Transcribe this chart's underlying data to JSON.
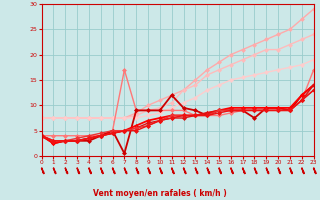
{
  "xlabel": "Vent moyen/en rafales ( km/h )",
  "bg_color": "#cce8e8",
  "grid_color": "#99cccc",
  "axis_color": "#cc0000",
  "label_color": "#cc0000",
  "xlim": [
    0,
    23
  ],
  "ylim": [
    0,
    30
  ],
  "xticks": [
    0,
    1,
    2,
    3,
    4,
    5,
    6,
    7,
    8,
    9,
    10,
    11,
    12,
    13,
    14,
    15,
    16,
    17,
    18,
    19,
    20,
    21,
    22,
    23
  ],
  "yticks": [
    0,
    5,
    10,
    15,
    20,
    25,
    30
  ],
  "lines": [
    {
      "x": [
        0,
        1,
        2,
        3,
        4,
        5,
        6,
        7,
        8,
        9,
        10,
        11,
        12,
        13,
        14,
        15,
        16,
        17,
        18,
        19,
        20,
        21,
        22,
        23
      ],
      "y": [
        7.5,
        7.5,
        7.5,
        7.5,
        7.5,
        7.5,
        7.5,
        7.5,
        8.5,
        10,
        11,
        12,
        13,
        15,
        17,
        18.5,
        20,
        21,
        22,
        23,
        24,
        25,
        27,
        29
      ],
      "color": "#ffaaaa",
      "lw": 1.0,
      "ms": 2.5
    },
    {
      "x": [
        0,
        1,
        2,
        3,
        4,
        5,
        6,
        7,
        8,
        9,
        10,
        11,
        12,
        13,
        14,
        15,
        16,
        17,
        18,
        19,
        20,
        21,
        22,
        23
      ],
      "y": [
        7.5,
        7.5,
        7.5,
        7.5,
        7.5,
        7.5,
        7.5,
        7.5,
        8,
        9,
        9.5,
        10.5,
        13,
        14,
        16,
        17,
        18,
        19,
        20,
        21,
        21,
        22,
        23,
        24
      ],
      "color": "#ffbbbb",
      "lw": 1.0,
      "ms": 2.5
    },
    {
      "x": [
        0,
        1,
        2,
        3,
        4,
        5,
        6,
        7,
        8,
        9,
        10,
        11,
        12,
        13,
        14,
        15,
        16,
        17,
        18,
        19,
        20,
        21,
        22,
        23
      ],
      "y": [
        7.5,
        7.5,
        7.5,
        7.5,
        7.5,
        7.5,
        7.5,
        7.5,
        7.5,
        8,
        8.5,
        9.5,
        10.5,
        11.5,
        13,
        14,
        15,
        15.5,
        16,
        16.5,
        17,
        17.5,
        18,
        19
      ],
      "color": "#ffcccc",
      "lw": 1.0,
      "ms": 2.5
    },
    {
      "x": [
        0,
        1,
        2,
        3,
        4,
        5,
        6,
        7,
        8,
        9,
        10,
        11,
        12,
        13,
        14,
        15,
        16,
        17,
        18,
        19,
        20,
        21,
        22,
        23
      ],
      "y": [
        4,
        4,
        4,
        4,
        4,
        4,
        5,
        17,
        9,
        9,
        9,
        9,
        9,
        8,
        8,
        8,
        8.5,
        9,
        9,
        9,
        9,
        9,
        11,
        17
      ],
      "color": "#ff7777",
      "lw": 1.0,
      "ms": 2.5
    },
    {
      "x": [
        0,
        1,
        2,
        3,
        4,
        5,
        6,
        7,
        8,
        9,
        10,
        11,
        12,
        13,
        14,
        15,
        16,
        17,
        18,
        19,
        20,
        21,
        22,
        23
      ],
      "y": [
        4,
        2.5,
        3,
        3,
        3,
        4,
        5,
        0.5,
        9,
        9,
        9,
        12,
        9.5,
        9,
        8,
        9,
        9,
        9,
        7.5,
        9.5,
        9.5,
        9,
        12,
        14
      ],
      "color": "#cc0000",
      "lw": 1.3,
      "ms": 2.5
    },
    {
      "x": [
        0,
        1,
        2,
        3,
        4,
        5,
        6,
        7,
        8,
        9,
        10,
        11,
        12,
        13,
        14,
        15,
        16,
        17,
        18,
        19,
        20,
        21,
        22,
        23
      ],
      "y": [
        4,
        2.5,
        3,
        3,
        3.5,
        4,
        4.5,
        5,
        6,
        7,
        7.5,
        8,
        8,
        8,
        8.5,
        9,
        9.5,
        9.5,
        9.5,
        9.5,
        9.5,
        9.5,
        12,
        14
      ],
      "color": "#ff0000",
      "lw": 1.3,
      "ms": 2.5
    },
    {
      "x": [
        0,
        1,
        2,
        3,
        4,
        5,
        6,
        7,
        8,
        9,
        10,
        11,
        12,
        13,
        14,
        15,
        16,
        17,
        18,
        19,
        20,
        21,
        22,
        23
      ],
      "y": [
        4,
        3,
        3,
        3,
        3.5,
        4,
        4.5,
        5,
        5.5,
        6.5,
        7,
        7.5,
        7.5,
        8,
        8.5,
        9,
        9,
        9,
        9,
        9,
        9,
        9,
        11,
        14
      ],
      "color": "#dd1111",
      "lw": 1.0,
      "ms": 2.5
    },
    {
      "x": [
        0,
        1,
        2,
        3,
        4,
        5,
        6,
        7,
        8,
        9,
        10,
        11,
        12,
        13,
        14,
        15,
        16,
        17,
        18,
        19,
        20,
        21,
        22,
        23
      ],
      "y": [
        4,
        3,
        3,
        3.5,
        4,
        4.5,
        5,
        5,
        5.5,
        6,
        7,
        8,
        8,
        8,
        8,
        9,
        9,
        9,
        9,
        9,
        9,
        9,
        11,
        13
      ],
      "color": "#ee3333",
      "lw": 1.0,
      "ms": 2.5
    },
    {
      "x": [
        0,
        1,
        2,
        3,
        4,
        5,
        6,
        7,
        8,
        9,
        10,
        11,
        12,
        13,
        14,
        15,
        16,
        17,
        18,
        19,
        20,
        21,
        22,
        23
      ],
      "y": [
        4,
        3,
        3,
        3,
        3.5,
        4,
        4.5,
        5,
        5,
        6,
        7,
        7.5,
        8,
        8,
        8,
        8.5,
        9,
        9,
        9,
        9,
        9,
        9,
        11,
        13
      ],
      "color": "#ee1111",
      "lw": 1.0,
      "ms": 2.5
    }
  ]
}
